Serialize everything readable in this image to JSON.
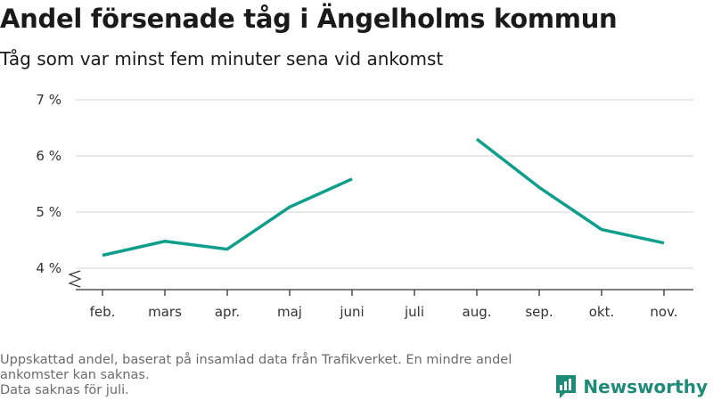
{
  "title": "Andel försenade tåg i Ängelholms kommun",
  "subtitle": "Tåg som var minst fem minuter sena vid ankomst",
  "footer": {
    "line1": "Uppskattad andel, baserat på insamlad data från Trafikverket. En mindre andel",
    "line2": "ankomster kan saknas.",
    "line3": "Data saknas för juli."
  },
  "brand": {
    "name": "Newsworthy"
  },
  "colors": {
    "line": "#0f9d8c",
    "grid": "#dcdcdc",
    "brand": "#1e8a78"
  },
  "chart_data": {
    "type": "line",
    "categories": [
      "feb.",
      "mars",
      "apr.",
      "maj",
      "juni",
      "juli",
      "aug.",
      "sep.",
      "okt.",
      "nov."
    ],
    "series": [
      {
        "values": [
          4.23,
          4.48,
          4.34,
          5.09,
          5.59,
          null,
          6.3,
          5.44,
          4.69,
          4.45
        ]
      }
    ],
    "ylim": [
      4,
      7
    ],
    "yticks": [
      4,
      5,
      6,
      7
    ],
    "ytick_labels": [
      "4 %",
      "5 %",
      "6 %",
      "7 %"
    ],
    "axis_break": true,
    "grid": true
  }
}
